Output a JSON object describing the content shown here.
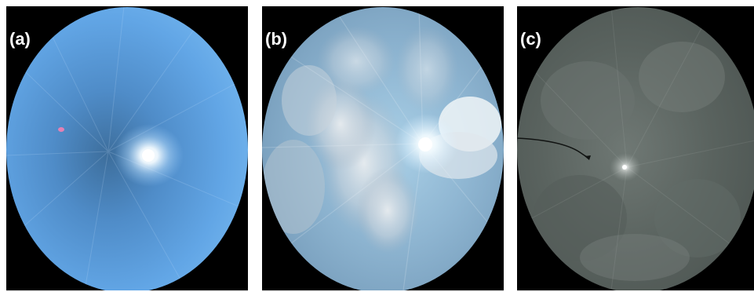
{
  "panels": [
    {
      "label": "(a)",
      "sky": "clear-sky",
      "sky_color": "#5fa2e0"
    },
    {
      "label": "(b)",
      "sky": "partly-cloudy-sky",
      "sky_color": "#8fb4cf"
    },
    {
      "label": "(c)",
      "sky": "overcast-sky",
      "sky_color": "#5b6462"
    }
  ]
}
